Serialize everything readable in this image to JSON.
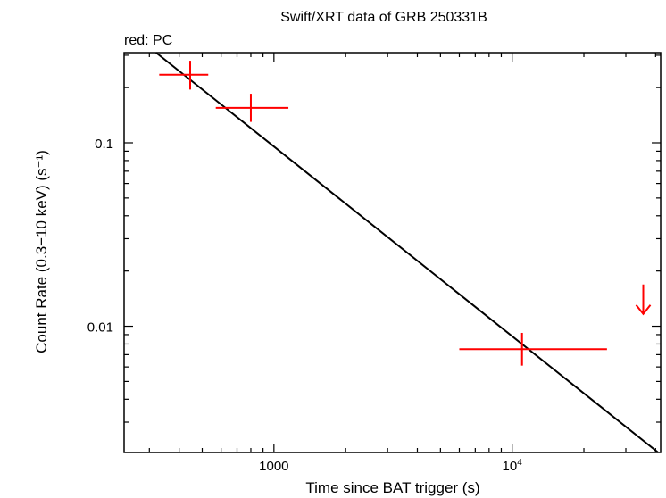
{
  "chart_data": {
    "type": "scatter",
    "title": "Swift/XRT data of GRB 250331B",
    "subtitle": "red: PC",
    "xlabel": "Time since BAT trigger (s)",
    "ylabel": "Count Rate (0.3−10 keV) (s⁻¹)",
    "x_scale": "log",
    "y_scale": "log",
    "xlim": [
      235,
      42000
    ],
    "ylim": [
      0.00205,
      0.31
    ],
    "x_tick_labels": [
      {
        "value": 1000,
        "text": "1000"
      },
      {
        "value": 10000,
        "base": "10",
        "exp": "4"
      }
    ],
    "y_tick_labels": [
      {
        "value": 0.1,
        "text": "0.1"
      },
      {
        "value": 0.01,
        "text": "0.01"
      }
    ],
    "series": [
      {
        "mode": "PC",
        "color": "#ff0000",
        "points": [
          {
            "x": 445,
            "xlo": 330,
            "xhi": 530,
            "y": 0.235,
            "ylo": 0.195,
            "yhi": 0.28
          },
          {
            "x": 800,
            "xlo": 570,
            "xhi": 1150,
            "y": 0.155,
            "ylo": 0.13,
            "yhi": 0.185
          },
          {
            "x": 11000,
            "xlo": 6000,
            "xhi": 25000,
            "y": 0.0075,
            "ylo": 0.0061,
            "yhi": 0.0092
          }
        ],
        "upper_limits": [
          {
            "x": 35500,
            "y": 0.0135
          }
        ]
      }
    ],
    "model_line": {
      "color": "#000000",
      "points": [
        {
          "x": 320,
          "y": 0.31
        },
        {
          "x": 41000,
          "y": 0.00205
        }
      ]
    }
  }
}
